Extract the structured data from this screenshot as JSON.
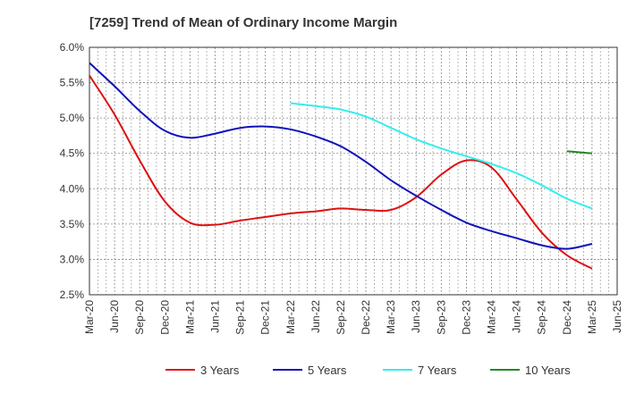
{
  "chart_data": {
    "type": "line",
    "title": "[7259]  Trend of Mean of Ordinary Income Margin",
    "xlabel": "",
    "ylabel": "",
    "x_ticks": [
      "Mar-20",
      "Jun-20",
      "Sep-20",
      "Dec-20",
      "Mar-21",
      "Jun-21",
      "Sep-21",
      "Dec-21",
      "Mar-22",
      "Jun-22",
      "Sep-22",
      "Dec-22",
      "Mar-23",
      "Jun-23",
      "Sep-23",
      "Dec-23",
      "Mar-24",
      "Jun-24",
      "Sep-24",
      "Dec-24",
      "Mar-25",
      "Jun-25"
    ],
    "y_ticks": [
      "2.5%",
      "3.0%",
      "3.5%",
      "4.0%",
      "4.5%",
      "5.0%",
      "5.5%",
      "6.0%"
    ],
    "ylim": [
      2.5,
      6.0
    ],
    "grid": true,
    "legend_position": "bottom",
    "series": [
      {
        "name": "3 Years",
        "color": "#dd1111",
        "points": [
          [
            "Mar-20",
            5.6
          ],
          [
            "Jun-20",
            5.05
          ],
          [
            "Sep-20",
            4.4
          ],
          [
            "Dec-20",
            3.82
          ],
          [
            "Mar-21",
            3.52
          ],
          [
            "Jun-21",
            3.49
          ],
          [
            "Sep-21",
            3.55
          ],
          [
            "Dec-21",
            3.6
          ],
          [
            "Mar-22",
            3.65
          ],
          [
            "Jun-22",
            3.68
          ],
          [
            "Sep-22",
            3.72
          ],
          [
            "Dec-22",
            3.7
          ],
          [
            "Mar-23",
            3.7
          ],
          [
            "Jun-23",
            3.88
          ],
          [
            "Sep-23",
            4.2
          ],
          [
            "Dec-23",
            4.4
          ],
          [
            "Mar-24",
            4.3
          ],
          [
            "Jun-24",
            3.85
          ],
          [
            "Sep-24",
            3.38
          ],
          [
            "Dec-24",
            3.06
          ],
          [
            "Mar-25",
            2.87
          ]
        ]
      },
      {
        "name": "5 Years",
        "color": "#1111bb",
        "points": [
          [
            "Mar-20",
            5.78
          ],
          [
            "Jun-20",
            5.45
          ],
          [
            "Sep-20",
            5.1
          ],
          [
            "Dec-20",
            4.82
          ],
          [
            "Mar-21",
            4.72
          ],
          [
            "Jun-21",
            4.78
          ],
          [
            "Sep-21",
            4.86
          ],
          [
            "Dec-21",
            4.88
          ],
          [
            "Mar-22",
            4.84
          ],
          [
            "Jun-22",
            4.74
          ],
          [
            "Sep-22",
            4.6
          ],
          [
            "Dec-22",
            4.38
          ],
          [
            "Mar-23",
            4.12
          ],
          [
            "Jun-23",
            3.9
          ],
          [
            "Sep-23",
            3.7
          ],
          [
            "Dec-23",
            3.52
          ],
          [
            "Mar-24",
            3.4
          ],
          [
            "Jun-24",
            3.3
          ],
          [
            "Sep-24",
            3.2
          ],
          [
            "Dec-24",
            3.15
          ],
          [
            "Mar-25",
            3.22
          ]
        ]
      },
      {
        "name": "7 Years",
        "color": "#33eeee",
        "points": [
          [
            "Mar-22",
            5.21
          ],
          [
            "Jun-22",
            5.17
          ],
          [
            "Sep-22",
            5.12
          ],
          [
            "Dec-22",
            5.02
          ],
          [
            "Mar-23",
            4.86
          ],
          [
            "Jun-23",
            4.7
          ],
          [
            "Sep-23",
            4.57
          ],
          [
            "Dec-23",
            4.46
          ],
          [
            "Mar-24",
            4.35
          ],
          [
            "Jun-24",
            4.22
          ],
          [
            "Sep-24",
            4.05
          ],
          [
            "Dec-24",
            3.86
          ],
          [
            "Mar-25",
            3.72
          ]
        ]
      },
      {
        "name": "10 Years",
        "color": "#228822",
        "points": [
          [
            "Dec-24",
            4.53
          ],
          [
            "Mar-25",
            4.5
          ]
        ]
      }
    ]
  }
}
